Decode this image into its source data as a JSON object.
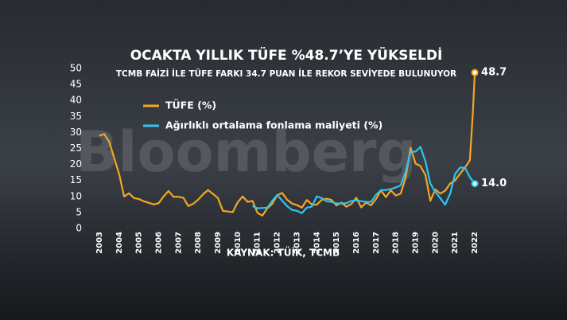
{
  "chart_data": {
    "type": "line",
    "title": "OCAKTA YILLIK TÜFE %48.7’YE YÜKSELDİ",
    "subtitle": "TCMB FAİZİ İLE TÜFE FARKI 34.7 PUAN İLE REKOR SEVİYEDE BULUNUYOR",
    "source": "KAYNAK: TÜİK, TCMB",
    "watermark": "Bloomberg",
    "xlim": [
      2002.8,
      2022.4
    ],
    "xticks": [
      2003,
      2004,
      2005,
      2006,
      2007,
      2008,
      2009,
      2010,
      2011,
      2012,
      2013,
      2014,
      2015,
      2016,
      2017,
      2018,
      2019,
      2020,
      2021,
      2022
    ],
    "ylim": [
      0,
      50
    ],
    "yticks": [
      0,
      5,
      10,
      15,
      20,
      25,
      30,
      35,
      40,
      45,
      50
    ],
    "grid": false,
    "legend": "upper-left",
    "series": [
      {
        "name": "TÜFE (%)",
        "color": "#f5a623",
        "x": [
          2003.0,
          2003.25,
          2003.5,
          2003.75,
          2004.0,
          2004.25,
          2004.5,
          2004.75,
          2005.0,
          2005.25,
          2005.5,
          2005.75,
          2006.0,
          2006.25,
          2006.5,
          2006.75,
          2007.0,
          2007.25,
          2007.5,
          2007.75,
          2008.0,
          2008.25,
          2008.5,
          2008.75,
          2009.0,
          2009.25,
          2009.5,
          2009.75,
          2010.0,
          2010.25,
          2010.5,
          2010.75,
          2011.0,
          2011.25,
          2011.5,
          2011.75,
          2012.0,
          2012.25,
          2012.5,
          2012.75,
          2013.0,
          2013.25,
          2013.5,
          2013.75,
          2014.0,
          2014.25,
          2014.5,
          2014.75,
          2015.0,
          2015.25,
          2015.5,
          2015.75,
          2016.0,
          2016.25,
          2016.5,
          2016.75,
          2017.0,
          2017.25,
          2017.5,
          2017.75,
          2018.0,
          2018.25,
          2018.5,
          2018.75,
          2019.0,
          2019.25,
          2019.5,
          2019.75,
          2020.0,
          2020.25,
          2020.5,
          2020.75,
          2021.0,
          2021.25,
          2021.5,
          2021.75,
          2021.9,
          2022.0
        ],
        "values": [
          29,
          29.5,
          27,
          22,
          17,
          10,
          11,
          9.5,
          9.2,
          8.5,
          8,
          7.5,
          7.9,
          10,
          11.7,
          9.9,
          9.9,
          9.6,
          7,
          7.7,
          9,
          10.7,
          12,
          10.8,
          9.5,
          5.5,
          5.3,
          5.1,
          8.2,
          10,
          8.3,
          8.6,
          4.9,
          4,
          6.3,
          7.7,
          10.4,
          11.1,
          9,
          7.8,
          7.3,
          6.5,
          8.9,
          7.5,
          7.4,
          8.9,
          9.3,
          8.9,
          7.2,
          8.1,
          6.8,
          7.6,
          9.6,
          6.6,
          8.1,
          7.2,
          9.2,
          11.9,
          9.8,
          11.9,
          10.3,
          10.9,
          15.9,
          25.2,
          20.3,
          19.5,
          16.7,
          8.6,
          12.2,
          10.9,
          11.8,
          14,
          15,
          17.1,
          19,
          21.3,
          36,
          48.7
        ],
        "value_labels": [
          null,
          null,
          null,
          null,
          null,
          null,
          null,
          null,
          null,
          null,
          null,
          null,
          null,
          null,
          null,
          null,
          null,
          null,
          null,
          null,
          null,
          null,
          null,
          null,
          null,
          null,
          null,
          null,
          null,
          null,
          null,
          null,
          null,
          null,
          null,
          null,
          null,
          null,
          null,
          null,
          null,
          null,
          null,
          null,
          null,
          null,
          null,
          null,
          null,
          null,
          null,
          null,
          null,
          null,
          null,
          null,
          null,
          null,
          null,
          null,
          null,
          null,
          null,
          null,
          null,
          null,
          null,
          null,
          null,
          null,
          null,
          null,
          null,
          null,
          null,
          null,
          null,
          "48.7"
        ]
      },
      {
        "name": "Ağırlıklı ortalama fonlama maliyeti (%)",
        "color": "#2ec4f0",
        "x": [
          2010.75,
          2011.0,
          2011.5,
          2011.8,
          2012.0,
          2012.25,
          2012.5,
          2012.75,
          2013.0,
          2013.25,
          2013.5,
          2013.75,
          2014.0,
          2014.25,
          2014.5,
          2014.75,
          2015.0,
          2015.25,
          2015.5,
          2015.75,
          2016.0,
          2016.25,
          2016.5,
          2016.75,
          2017.0,
          2017.25,
          2017.5,
          2017.75,
          2018.0,
          2018.25,
          2018.5,
          2018.75,
          2019.0,
          2019.25,
          2019.5,
          2019.75,
          2020.0,
          2020.25,
          2020.5,
          2020.75,
          2021.0,
          2021.25,
          2021.5,
          2021.75,
          2022.0
        ],
        "values": [
          7,
          6.3,
          6.5,
          9,
          10.5,
          8.7,
          7,
          5.8,
          5.5,
          4.8,
          6.5,
          6.8,
          10,
          9.5,
          8.5,
          8.3,
          7.8,
          7.8,
          7.9,
          8.6,
          8.8,
          8.5,
          8.3,
          8.3,
          10.5,
          12,
          12,
          12.3,
          12.8,
          13.5,
          17.7,
          24,
          24,
          25.5,
          21,
          14,
          11.4,
          9.5,
          7.4,
          10.8,
          17,
          19,
          19,
          16,
          14.0
        ],
        "value_labels": [
          null,
          null,
          null,
          null,
          null,
          null,
          null,
          null,
          null,
          null,
          null,
          null,
          null,
          null,
          null,
          null,
          null,
          null,
          null,
          null,
          null,
          null,
          null,
          null,
          null,
          null,
          null,
          null,
          null,
          null,
          null,
          null,
          null,
          null,
          null,
          null,
          null,
          null,
          null,
          null,
          null,
          null,
          null,
          null,
          "14.0"
        ]
      }
    ]
  }
}
